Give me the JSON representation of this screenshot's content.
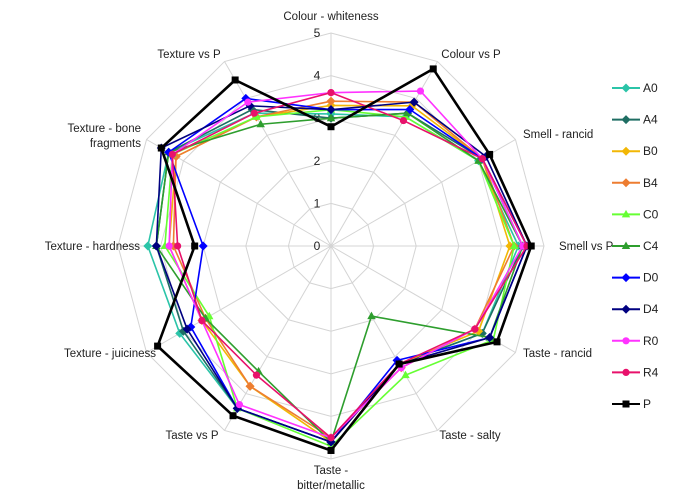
{
  "chart_data": {
    "type": "radar",
    "title": "",
    "axes": [
      "Colour - whiteness",
      "Colour vs P",
      "Smell - rancid",
      "Smell vs P",
      "Taste - rancid",
      "Taste - salty",
      "Taste - bitter/metallic",
      "Taste vs P",
      "Texture - juiciness",
      "Texture - hardness",
      "Texture - bone fragments",
      "Texture vs P"
    ],
    "r_range": [
      0,
      5
    ],
    "r_ticks": [
      "0",
      "1",
      "2",
      "3",
      "4",
      "5"
    ],
    "grid": true,
    "legend_position": "right",
    "series": [
      {
        "name": "A0",
        "color": "#2bc4a8",
        "marker": "diamond",
        "values": [
          3.1,
          3.5,
          4.0,
          4.4,
          4.1,
          3.2,
          4.6,
          4.4,
          4.1,
          4.3,
          4.4,
          3.6
        ]
      },
      {
        "name": "A4",
        "color": "#1f6e63",
        "marker": "diamond",
        "values": [
          3.0,
          3.6,
          4.1,
          4.5,
          4.1,
          3.2,
          4.6,
          4.4,
          4.0,
          4.1,
          4.4,
          3.7
        ]
      },
      {
        "name": "B0",
        "color": "#f2b705",
        "marker": "diamond",
        "values": [
          3.3,
          3.8,
          4.1,
          4.2,
          4.0,
          3.2,
          4.6,
          3.8,
          3.5,
          3.8,
          4.2,
          3.5
        ]
      },
      {
        "name": "B4",
        "color": "#ed7d31",
        "marker": "diamond",
        "values": [
          3.4,
          3.9,
          4.1,
          4.3,
          3.9,
          3.3,
          4.5,
          3.8,
          3.4,
          3.7,
          4.2,
          3.5
        ]
      },
      {
        "name": "C0",
        "color": "#66ff33",
        "marker": "triangle",
        "values": [
          3.2,
          3.5,
          4.0,
          4.3,
          4.4,
          3.5,
          4.7,
          4.4,
          3.3,
          3.9,
          4.3,
          3.5
        ]
      },
      {
        "name": "C4",
        "color": "#2e9e2e",
        "marker": "triangle",
        "values": [
          3.0,
          3.6,
          4.0,
          4.5,
          4.3,
          1.9,
          4.6,
          3.4,
          3.4,
          4.1,
          4.4,
          3.3
        ]
      },
      {
        "name": "D0",
        "color": "#0000ff",
        "marker": "diamond",
        "values": [
          3.2,
          3.7,
          4.1,
          4.6,
          4.3,
          3.1,
          4.6,
          4.4,
          3.8,
          3.0,
          4.4,
          4.0
        ]
      },
      {
        "name": "D4",
        "color": "#000080",
        "marker": "diamond",
        "values": [
          3.2,
          3.9,
          4.2,
          4.6,
          4.3,
          3.2,
          4.6,
          4.4,
          3.9,
          4.1,
          4.6,
          3.8
        ]
      },
      {
        "name": "R0",
        "color": "#ff33ff",
        "marker": "circle",
        "values": [
          3.6,
          4.2,
          4.1,
          4.5,
          3.9,
          3.3,
          4.5,
          4.3,
          3.5,
          3.8,
          4.3,
          3.9
        ]
      },
      {
        "name": "R4",
        "color": "#e8116b",
        "marker": "circle",
        "values": [
          3.6,
          3.4,
          4.1,
          4.6,
          3.9,
          3.2,
          4.5,
          3.5,
          3.5,
          3.6,
          4.3,
          3.6
        ]
      },
      {
        "name": "P",
        "color": "#000000",
        "marker": "square",
        "values": [
          2.8,
          4.8,
          4.3,
          4.7,
          4.5,
          3.2,
          4.8,
          4.6,
          4.7,
          3.2,
          4.6,
          4.5
        ]
      }
    ]
  }
}
